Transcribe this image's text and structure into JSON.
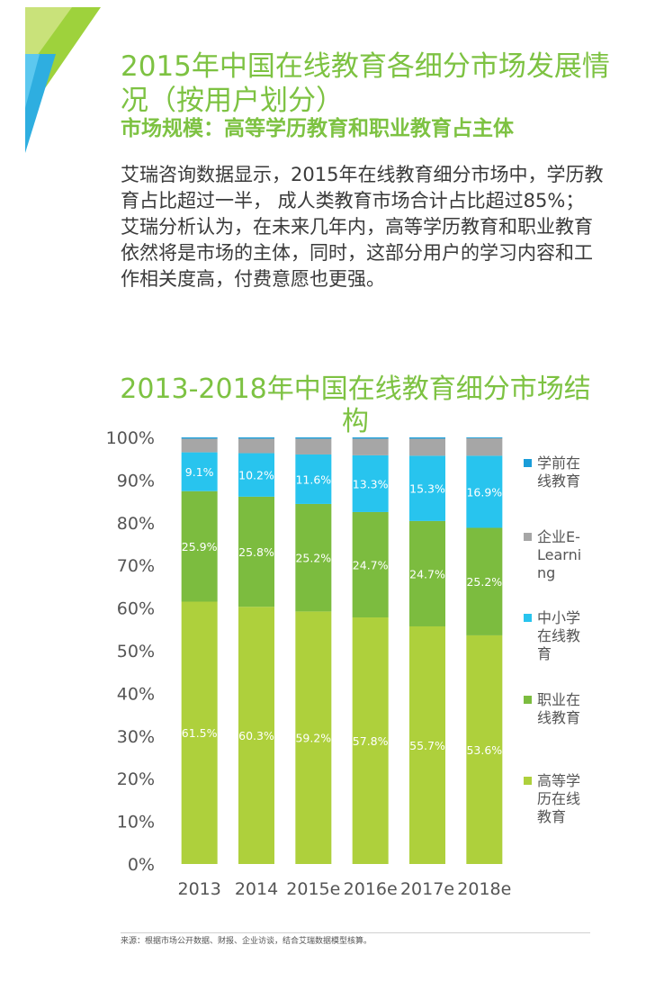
{
  "header": {
    "title": "2015年中国在线教育各细分市场发展情况（按用户划分）",
    "subtitle": "市场规模：高等学历教育和职业教育占主体"
  },
  "body": {
    "paragraph1": "艾瑞咨询数据显示，2015年在线教育细分市场中，学历教育占比超过一半， 成人类教育市场合计占比超过85%；",
    "paragraph2": "艾瑞分析认为，在未来几年内，高等学历教育和职业教育依然将是市场的主体，同时，这部分用户的学习内容和工作相关度高，付费意愿也更强。"
  },
  "footer": {
    "source": "来源：根据市场公开数据、财报、企业访谈，结合艾瑞数据模型核算。"
  },
  "colors": {
    "brand_green": "#7dc242",
    "higher_edu": "#aed03c",
    "vocational": "#7cbc3f",
    "k12": "#28c4ee",
    "enterprise": "#a6a6a6",
    "preschool": "#1a9dd9"
  },
  "chart_data": {
    "type": "bar",
    "stacked": true,
    "title": "2013-2018年中国在线教育细分市场结构",
    "categories": [
      "2013",
      "2014",
      "2015e",
      "2016e",
      "2017e",
      "2018e"
    ],
    "y_ticks": [
      "0%",
      "10%",
      "20%",
      "30%",
      "40%",
      "50%",
      "60%",
      "70%",
      "80%",
      "90%",
      "100%"
    ],
    "ylim": [
      0,
      100
    ],
    "legend_position": "right",
    "series": [
      {
        "name": "高等学历在线教育",
        "color": "#aed03c",
        "values": [
          61.5,
          60.3,
          59.2,
          57.8,
          55.7,
          53.6
        ],
        "labels": [
          "61.5%",
          "60.3%",
          "59.2%",
          "57.8%",
          "55.7%",
          "53.6%"
        ]
      },
      {
        "name": "职业在线教育",
        "color": "#7cbc3f",
        "values": [
          25.9,
          25.8,
          25.2,
          24.7,
          24.7,
          25.2
        ],
        "labels": [
          "25.9%",
          "25.8%",
          "25.2%",
          "24.7%",
          "24.7%",
          "25.2%"
        ]
      },
      {
        "name": "中小学在线教育",
        "color": "#28c4ee",
        "values": [
          9.1,
          10.2,
          11.6,
          13.3,
          15.3,
          16.9
        ],
        "labels": [
          "9.1%",
          "10.2%",
          "11.6%",
          "13.3%",
          "15.3%",
          "16.9%"
        ]
      },
      {
        "name": "企业E-Learning",
        "color": "#a6a6a6",
        "values": [
          3.2,
          3.4,
          3.7,
          3.9,
          4.0,
          4.1
        ],
        "labels": [
          "",
          "",
          "",
          "",
          "",
          ""
        ]
      },
      {
        "name": "学前在线教育",
        "color": "#1a9dd9",
        "values": [
          0.3,
          0.3,
          0.3,
          0.3,
          0.3,
          0.2
        ],
        "labels": [
          "",
          "",
          "",
          "",
          "",
          ""
        ]
      }
    ],
    "legend": [
      {
        "lines": [
          "学前在",
          "线教育"
        ],
        "color": "#1a9dd9"
      },
      {
        "lines": [
          "企业E-",
          "Learni",
          "ng"
        ],
        "color": "#a6a6a6"
      },
      {
        "lines": [
          "中小学",
          "在线教",
          "育"
        ],
        "color": "#28c4ee"
      },
      {
        "lines": [
          "职业在",
          "线教育"
        ],
        "color": "#7cbc3f"
      },
      {
        "lines": [
          "高等学",
          "历在线",
          "教育"
        ],
        "color": "#aed03c"
      }
    ]
  }
}
